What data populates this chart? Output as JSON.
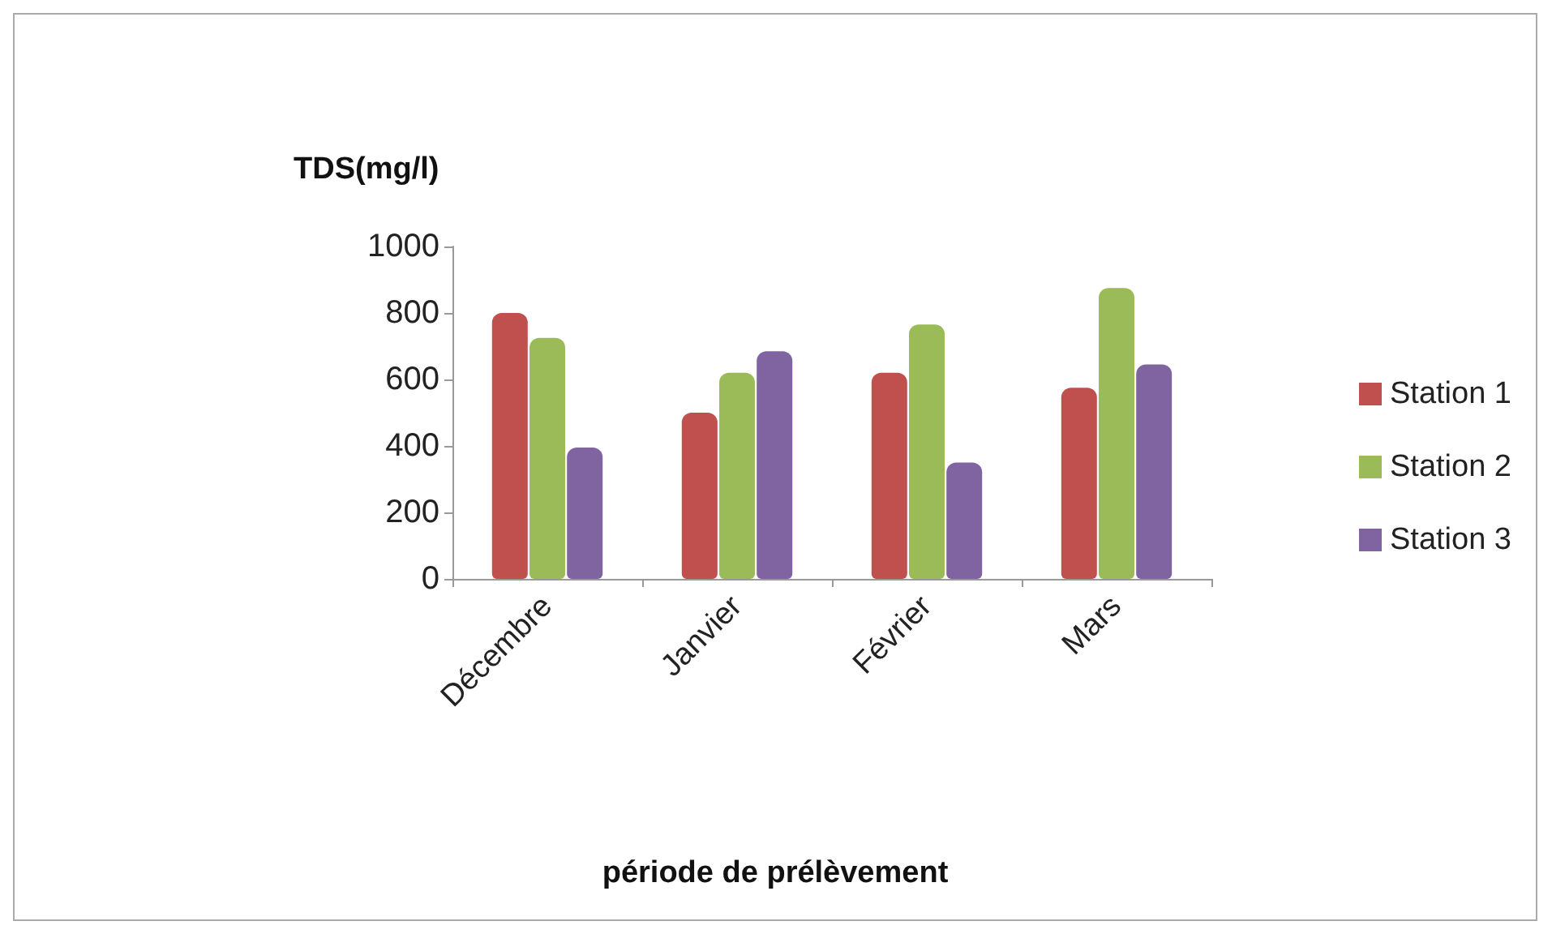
{
  "chart_data": {
    "type": "bar",
    "ylabel": "TDS(mg/l)",
    "xlabel": "période de prélèvement",
    "categories": [
      "Décembre",
      "Janvier",
      "Février",
      "Mars"
    ],
    "series": [
      {
        "name": "Station 1",
        "color": "#c0504d",
        "values": [
          800,
          500,
          620,
          575
        ]
      },
      {
        "name": "Station 2",
        "color": "#9bbb59",
        "values": [
          725,
          620,
          765,
          875
        ]
      },
      {
        "name": "Station 3",
        "color": "#8064a2",
        "values": [
          395,
          685,
          350,
          645
        ]
      }
    ],
    "ylim": [
      0,
      1000
    ],
    "yticks": [
      0,
      200,
      400,
      600,
      800,
      1000
    ],
    "grid": false,
    "legend": "right"
  }
}
